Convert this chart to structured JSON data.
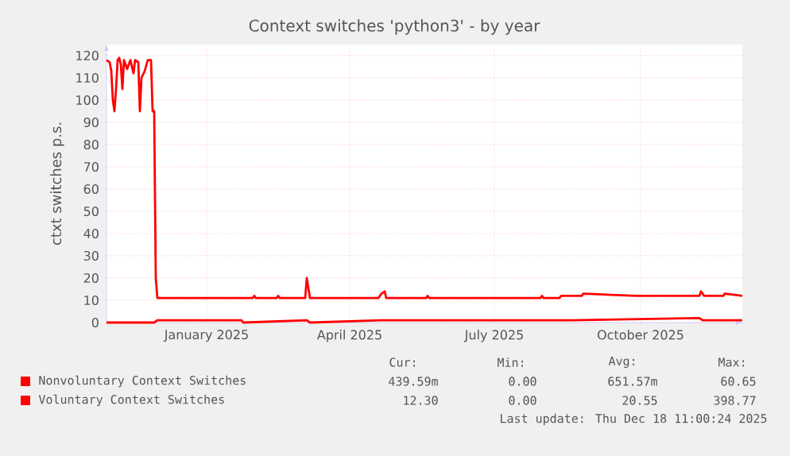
{
  "chart_data": {
    "type": "line",
    "title": "Context switches 'python3' - by year",
    "ylabel": "ctxt switches p.s.",
    "xlim": [
      "2024-11-13",
      "2025-12-18"
    ],
    "ylim": [
      0,
      125
    ],
    "xticks": [
      {
        "value": "2025-01-15",
        "label": "January 2025"
      },
      {
        "value": "2025-04-15",
        "label": "April 2025"
      },
      {
        "value": "2025-07-15",
        "label": "July 2025"
      },
      {
        "value": "2025-10-15",
        "label": "October 2025"
      }
    ],
    "yticks": [
      0,
      10,
      20,
      30,
      40,
      50,
      60,
      70,
      80,
      90,
      100,
      110,
      120
    ],
    "grid": true,
    "legend": "bottom",
    "series": [
      {
        "name": "Nonvoluntary Context Switches",
        "color": "#ff0000",
        "x": [
          "2024-11-13",
          "2024-12-13",
          "2024-12-15",
          "2025-02-06",
          "2025-02-07",
          "2025-03-19",
          "2025-03-21",
          "2025-05-05",
          "2025-09-02",
          "2025-11-21",
          "2025-11-23",
          "2025-12-18"
        ],
        "values": [
          0,
          0,
          1,
          1,
          0,
          1,
          0,
          1,
          1,
          2,
          1,
          1
        ]
      },
      {
        "name": "Voluntary Context Switches",
        "color": "#ff0000",
        "x": [
          "2024-11-13",
          "2024-11-15",
          "2024-11-16",
          "2024-11-17",
          "2024-11-18",
          "2024-11-19",
          "2024-11-20",
          "2024-11-21",
          "2024-11-22",
          "2024-11-23",
          "2024-11-24",
          "2024-11-26",
          "2024-11-28",
          "2024-11-30",
          "2024-12-01",
          "2024-12-03",
          "2024-12-04",
          "2024-12-05",
          "2024-12-07",
          "2024-12-09",
          "2024-12-11",
          "2024-12-12",
          "2024-12-13",
          "2024-12-14",
          "2024-12-15",
          "2025-02-13",
          "2025-02-14",
          "2025-02-15",
          "2025-02-28",
          "2025-03-01",
          "2025-03-02",
          "2025-03-18",
          "2025-03-19",
          "2025-03-21",
          "2025-05-03",
          "2025-05-05",
          "2025-05-07",
          "2025-05-08",
          "2025-05-11",
          "2025-06-02",
          "2025-06-03",
          "2025-06-04",
          "2025-08-13",
          "2025-08-14",
          "2025-08-15",
          "2025-08-25",
          "2025-08-26",
          "2025-09-02",
          "2025-09-08",
          "2025-09-09",
          "2025-10-12",
          "2025-11-21",
          "2025-11-22",
          "2025-11-24",
          "2025-12-06",
          "2025-12-07",
          "2025-12-18"
        ],
        "values": [
          118,
          117,
          113,
          100,
          95,
          105,
          118,
          119,
          116,
          105,
          118,
          114,
          118,
          112,
          118,
          117,
          95,
          110,
          113,
          118,
          118,
          95,
          95,
          20,
          11,
          11,
          12,
          11,
          11,
          12,
          11,
          11,
          20,
          11,
          11,
          13,
          14,
          11,
          11,
          11,
          12,
          11,
          11,
          12,
          11,
          11,
          12,
          12,
          12,
          13,
          12,
          12,
          14,
          12,
          12,
          13,
          12
        ]
      }
    ],
    "annotations": [
      "Cur:",
      "Min:",
      "Avg:",
      "Max:",
      "439.59m",
      "0.00",
      "651.57m",
      "60.65",
      "12.30",
      "0.00",
      "20.55",
      "398.77",
      "Last update: Thu Dec 18 11:00:24 2025"
    ]
  }
}
